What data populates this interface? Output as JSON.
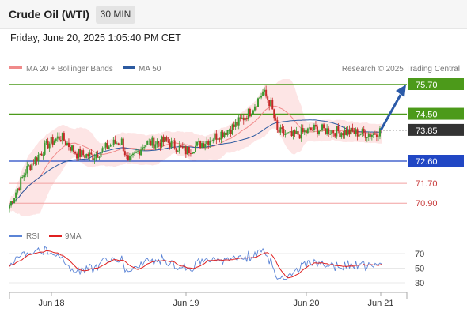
{
  "header": {
    "instrument": "Crude Oil (WTI)",
    "timeframe": "30 MIN"
  },
  "datetime": "Friday, June 20, 2025 1:05:40 PM CET",
  "legend": {
    "main": [
      {
        "label": "MA 20 + Bollinger Bands",
        "color": "#f08a8a"
      },
      {
        "label": "MA 50",
        "color": "#2c5aa0"
      }
    ],
    "watermark": "Research © 2025 Trading Central",
    "rsi": [
      {
        "label": "RSI",
        "color": "#5b84d6"
      },
      {
        "label": "9MA",
        "color": "#e02020"
      }
    ]
  },
  "colors": {
    "up": "#3c9a32",
    "down": "#c62828",
    "resistance": "#4c9a1a",
    "support": "#2147c4",
    "minor_support": "#e07070",
    "current": "#333333",
    "arrow": "#2b5aa8",
    "band": "#fcdcdc"
  },
  "chart_data": [
    {
      "type": "candlestick",
      "price_levels": [
        {
          "label": "75.70",
          "value": 75.7,
          "kind": "resistance"
        },
        {
          "label": "74.50",
          "value": 74.5,
          "kind": "resistance"
        },
        {
          "label": "73.85",
          "value": 73.85,
          "kind": "current"
        },
        {
          "label": "72.60",
          "value": 72.6,
          "kind": "support"
        },
        {
          "label": "71.70",
          "value": 71.7,
          "kind": "minor-support"
        },
        {
          "label": "70.90",
          "value": 70.9,
          "kind": "minor-support"
        }
      ],
      "x_ticks": [
        "Jun 18",
        "Jun 19",
        "Jun 20",
        "Jun 21"
      ],
      "series": [
        {
          "name": "MA 20 + Bollinger Bands"
        },
        {
          "name": "MA 50"
        }
      ],
      "forecast_arrow": {
        "from": 73.85,
        "to": 75.7
      }
    },
    {
      "type": "line",
      "levels": [
        70,
        50,
        30
      ],
      "level_labels": [
        "70",
        "50",
        "30"
      ],
      "series": [
        {
          "name": "RSI"
        },
        {
          "name": "9MA"
        }
      ]
    }
  ]
}
